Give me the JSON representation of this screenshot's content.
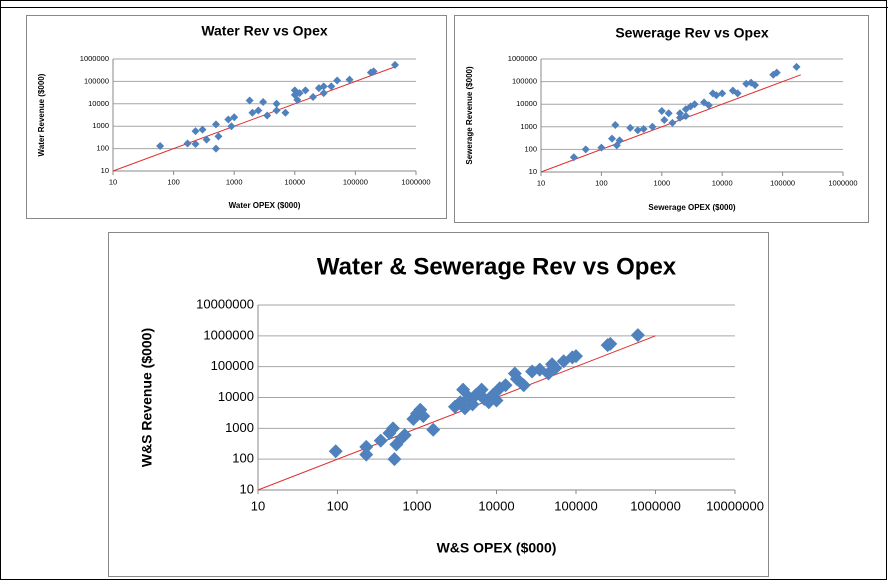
{
  "chart_data": [
    {
      "type": "scatter",
      "title": "Water Rev vs Opex",
      "x_label": "Water OPEX ($000)",
      "y_label": "Water Revenue ($000)",
      "log_x": true,
      "log_y": true,
      "grid": true,
      "color": "#4f81bd",
      "xlim": [
        10,
        1000000
      ],
      "xticks": [
        10,
        100,
        1000,
        10000,
        100000,
        1000000
      ],
      "ylim": [
        10,
        1000000
      ],
      "yticks": [
        10,
        100,
        1000,
        10000,
        100000,
        1000000
      ],
      "x": [
        60,
        170,
        230,
        230,
        300,
        350,
        500,
        500,
        550,
        800,
        900,
        1000,
        1800,
        2000,
        2500,
        3000,
        3500,
        5000,
        5000,
        7000,
        10000,
        10000,
        11000,
        12000,
        15000,
        20000,
        25000,
        30000,
        30000,
        40000,
        50000,
        80000,
        180000,
        200000,
        450000
      ],
      "values": [
        130,
        170,
        160,
        600,
        700,
        250,
        1200,
        100,
        350,
        2000,
        1000,
        2500,
        14000,
        4000,
        5000,
        12000,
        3000,
        5000,
        10000,
        4000,
        40000,
        25000,
        15000,
        30000,
        40000,
        20000,
        50000,
        60000,
        30000,
        60000,
        110000,
        120000,
        250000,
        280000,
        550000
      ],
      "trendline": {
        "x": [
          10,
          500000
        ],
        "y": [
          10,
          500000
        ],
        "color": "#e03030"
      }
    },
    {
      "type": "scatter",
      "title": "Sewerage Rev vs Opex",
      "x_label": "Sewerage OPEX ($000)",
      "y_label": "Sewerage Revenue ($000)",
      "log_x": true,
      "log_y": true,
      "grid": true,
      "color": "#4f81bd",
      "xlim": [
        10,
        1000000
      ],
      "xticks": [
        10,
        100,
        1000,
        10000,
        100000,
        1000000
      ],
      "ylim": [
        10,
        1000000
      ],
      "yticks": [
        10,
        100,
        1000,
        10000,
        100000,
        1000000
      ],
      "x": [
        35,
        55,
        100,
        150,
        170,
        180,
        200,
        300,
        400,
        500,
        700,
        1000,
        1100,
        1300,
        1500,
        2000,
        2000,
        2500,
        2500,
        3000,
        3500,
        5000,
        6000,
        7000,
        8000,
        10000,
        15000,
        18000,
        25000,
        30000,
        35000,
        70000,
        80000,
        170000
      ],
      "values": [
        45,
        100,
        120,
        300,
        1200,
        150,
        250,
        900,
        700,
        800,
        1000,
        5000,
        2000,
        4000,
        1500,
        2500,
        4000,
        6000,
        3000,
        8000,
        10000,
        12000,
        9000,
        30000,
        25000,
        30000,
        40000,
        30000,
        80000,
        90000,
        70000,
        200000,
        250000,
        450000
      ],
      "trendline": {
        "x": [
          10,
          200000
        ],
        "y": [
          10,
          200000
        ],
        "color": "#e03030"
      }
    },
    {
      "type": "scatter",
      "title": "Water & Sewerage Rev vs Opex",
      "x_label": "W&S OPEX ($000)",
      "y_label": "W&S Revenue ($000)",
      "log_x": true,
      "log_y": true,
      "grid": true,
      "color": "#4f81bd",
      "xlim": [
        10,
        10000000
      ],
      "xticks": [
        10,
        100,
        1000,
        10000,
        100000,
        1000000,
        10000000
      ],
      "ylim": [
        10,
        10000000
      ],
      "yticks": [
        10,
        100,
        1000,
        10000,
        100000,
        1000000,
        10000000
      ],
      "x": [
        95,
        230,
        230,
        350,
        450,
        500,
        520,
        550,
        650,
        700,
        900,
        1000,
        1100,
        1200,
        1600,
        3000,
        3500,
        3800,
        4000,
        4500,
        5000,
        5500,
        6500,
        7000,
        8000,
        9000,
        10000,
        11000,
        13000,
        17000,
        18000,
        22000,
        28000,
        35000,
        45000,
        50000,
        55000,
        70000,
        90000,
        100000,
        250000,
        270000,
        600000
      ],
      "values": [
        180,
        140,
        250,
        400,
        700,
        1000,
        100,
        300,
        500,
        600,
        2000,
        3000,
        4000,
        2500,
        900,
        5000,
        7000,
        18000,
        4500,
        10000,
        6000,
        12000,
        18000,
        9000,
        7000,
        12000,
        8000,
        20000,
        25000,
        60000,
        40000,
        25000,
        70000,
        80000,
        60000,
        120000,
        90000,
        150000,
        200000,
        220000,
        500000,
        550000,
        1050000
      ],
      "trendline": {
        "x": [
          10,
          1000000
        ],
        "y": [
          10,
          1000000
        ],
        "color": "#e03030"
      }
    }
  ]
}
